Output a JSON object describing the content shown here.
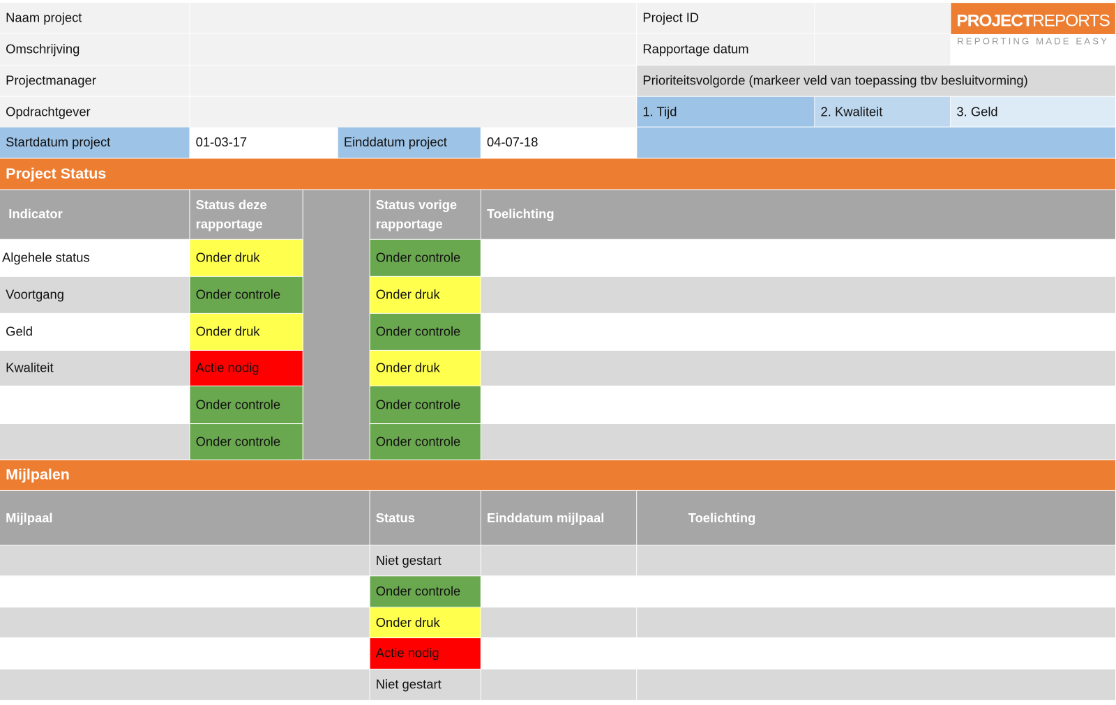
{
  "header": {
    "fields": [
      "Naam project",
      "Omschrijving",
      "Projectmanager",
      "Opdrachtgever"
    ],
    "project_id": "Project ID",
    "report_date": "Rapportage datum",
    "priority_title": "Prioriteitsvolgorde (markeer veld van toepassing tbv besluitvorming)",
    "priorities": [
      "1. Tijd",
      "2. Kwaliteit",
      "3. Geld"
    ],
    "start_label": "Startdatum project",
    "start_date": "01-03-17",
    "end_label": "Einddatum project",
    "end_date": "04-07-18"
  },
  "logo": {
    "brand_bold": "PROJECT",
    "brand_light": "REPORTS",
    "tagline": "REPORTING MADE EASY"
  },
  "status": {
    "title": "Project Status",
    "headers": [
      "Indicator",
      "Status deze rapportage",
      "Status vorige rapportage",
      "Toelichting"
    ],
    "rows": [
      {
        "indicator": "Algehele status",
        "current": {
          "label": "Onder druk",
          "color": "#ffff4d"
        },
        "previous": {
          "label": "Onder controle",
          "color": "#6aa84f"
        }
      },
      {
        "indicator": "Voortgang",
        "current": {
          "label": "Onder controle",
          "color": "#6aa84f"
        },
        "previous": {
          "label": "Onder druk",
          "color": "#ffff4d"
        }
      },
      {
        "indicator": "Geld",
        "current": {
          "label": "Onder druk",
          "color": "#ffff4d"
        },
        "previous": {
          "label": "Onder controle",
          "color": "#6aa84f"
        }
      },
      {
        "indicator": "Kwaliteit",
        "current": {
          "label": "Actie nodig",
          "color": "#ff0000"
        },
        "previous": {
          "label": "Onder druk",
          "color": "#ffff4d"
        }
      },
      {
        "current": {
          "label": "Onder controle",
          "color": "#6aa84f"
        },
        "previous": {
          "label": "Onder controle",
          "color": "#6aa84f"
        }
      },
      {
        "current": {
          "label": "Onder controle",
          "color": "#6aa84f"
        },
        "previous": {
          "label": "Onder controle",
          "color": "#6aa84f"
        }
      }
    ]
  },
  "milestones": {
    "title": "Mijlpalen",
    "headers": [
      "Mijlpaal",
      "Status",
      "Einddatum mijlpaal",
      "Toelichting"
    ],
    "rows": [
      {
        "status": {
          "label": "Niet gestart",
          "color": "#d9d9d9"
        }
      },
      {
        "status": {
          "label": "Onder controle",
          "color": "#6aa84f"
        }
      },
      {
        "status": {
          "label": "Onder druk",
          "color": "#ffff4d"
        }
      },
      {
        "status": {
          "label": "Actie nodig",
          "color": "#ff0000"
        }
      },
      {
        "status": {
          "label": "Niet gestart",
          "color": "#d9d9d9"
        }
      }
    ]
  }
}
